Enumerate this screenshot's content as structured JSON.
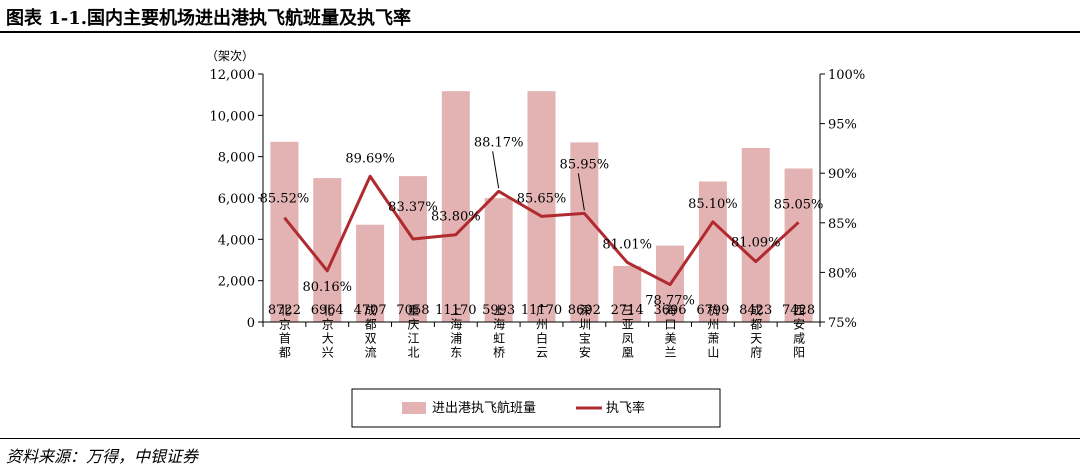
{
  "title": "图表 1-1.国内主要机场进出港执飞航班量及执飞率",
  "source": "资料来源：万得，中银证券",
  "colors": {
    "bar": "#e3b2b2",
    "line": "#b02a30",
    "axis": "#000000"
  },
  "chart_data": {
    "type": "bar",
    "categories": [
      "北京首都",
      "北京大兴",
      "成都双流",
      "重庆江北",
      "上海浦东",
      "上海虹桥",
      "广州白云",
      "深圳宝安",
      "三亚凤凰",
      "海口美兰",
      "杭州萧山",
      "成都天府",
      "西安咸阳"
    ],
    "bar_value_labels": [
      "8722",
      "6964",
      "4707",
      "7058",
      "11170",
      "5993",
      "11170",
      "8692",
      "2714",
      "3696",
      "6799",
      "8423",
      "7428"
    ],
    "series": [
      {
        "name": "进出港执飞航班量",
        "type": "bar",
        "axis": "left",
        "values": [
          8722,
          6964,
          4707,
          7058,
          11170,
          5993,
          11170,
          8692,
          2714,
          3696,
          6799,
          8423,
          7428
        ]
      },
      {
        "name": "执飞率",
        "type": "line",
        "axis": "right",
        "values": [
          85.52,
          80.16,
          89.69,
          83.37,
          83.8,
          88.17,
          85.65,
          85.95,
          81.01,
          78.77,
          85.1,
          81.09,
          85.05
        ],
        "labels": [
          "85.52%",
          "80.16%",
          "89.69%",
          "83.37%",
          "83.80%",
          "88.17%",
          "85.65%",
          "85.95%",
          "81.01%",
          "78.77%",
          "85.10%",
          "81.09%",
          "85.05%"
        ]
      }
    ],
    "left_axis": {
      "unit_label": "（架次）",
      "ylim": [
        0,
        12000
      ],
      "ticks": [
        0,
        2000,
        4000,
        6000,
        8000,
        10000,
        12000
      ],
      "tick_labels": [
        "0",
        "2,000",
        "4,000",
        "6,000",
        "8,000",
        "10,000",
        "12,000"
      ]
    },
    "right_axis": {
      "ylim": [
        75,
        100
      ],
      "ticks": [
        75,
        80,
        85,
        90,
        95,
        100
      ],
      "tick_labels": [
        "75%",
        "80%",
        "85%",
        "90%",
        "95%",
        "100%"
      ]
    },
    "grid": false,
    "legend": {
      "placement": "bottom",
      "items": [
        "进出港执飞航班量",
        "执飞率"
      ]
    }
  }
}
